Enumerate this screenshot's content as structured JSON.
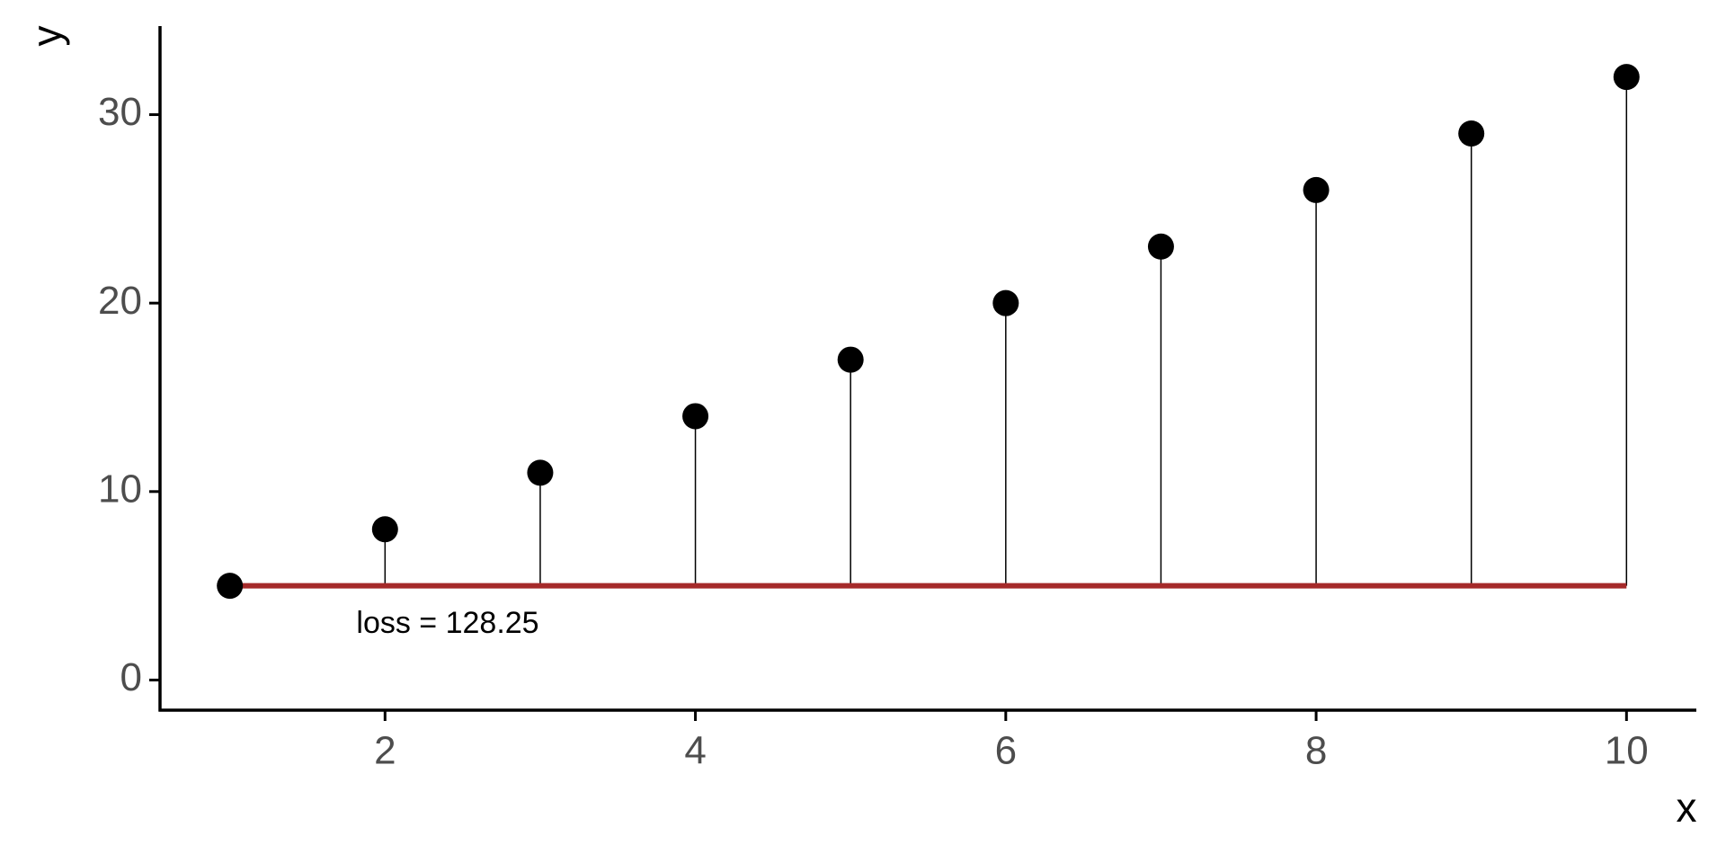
{
  "chart_data": {
    "type": "lollipop",
    "x": [
      1,
      2,
      3,
      4,
      5,
      6,
      7,
      8,
      9,
      10
    ],
    "series": [
      {
        "color": "#000000",
        "values": [
          5,
          8,
          11,
          14,
          17,
          20,
          23,
          26,
          29,
          32
        ]
      }
    ],
    "reference_line": {
      "value": 5,
      "color": "#a52a2a"
    },
    "annotation": "loss = 128.25",
    "xlabel": "x",
    "ylabel": "y",
    "xlim": [
      0.55,
      10.45
    ],
    "ylim": [
      -1.6,
      34.7
    ],
    "xticks": [
      2,
      4,
      6,
      8,
      10
    ],
    "yticks": [
      0,
      10,
      20,
      30
    ],
    "grid": false
  }
}
